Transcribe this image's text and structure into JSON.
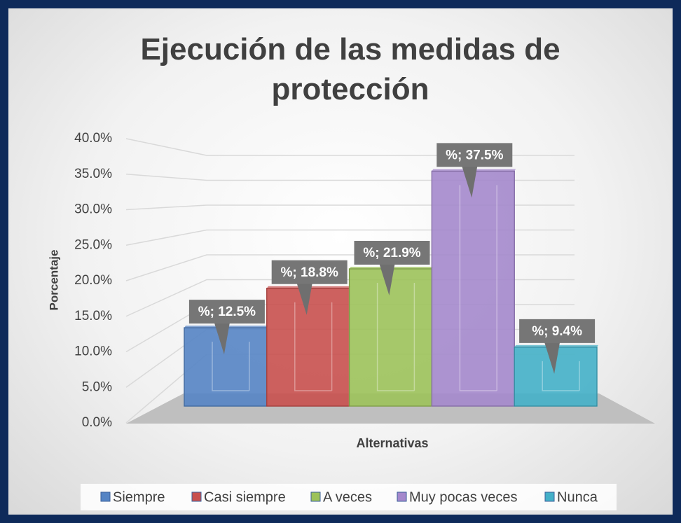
{
  "chart_data": {
    "type": "bar3d",
    "title": "Ejecución de las medidas de protección",
    "x_label": "Alternativas",
    "y_label": "Porcentaje",
    "ylim": [
      0,
      40
    ],
    "yticks": [
      {
        "value": 0,
        "label": "0.0%"
      },
      {
        "value": 5,
        "label": "5.0%"
      },
      {
        "value": 10,
        "label": "10.0%"
      },
      {
        "value": 15,
        "label": "15.0%"
      },
      {
        "value": 20,
        "label": "20.0%"
      },
      {
        "value": 25,
        "label": "25.0%"
      },
      {
        "value": 30,
        "label": "30.0%"
      },
      {
        "value": 35,
        "label": "35.0%"
      },
      {
        "value": 40,
        "label": "40.0%"
      }
    ],
    "grid": true,
    "legend": "bottom",
    "series": [
      {
        "name": "Siempre",
        "color": "#5584c4",
        "values": [
          12.5
        ],
        "value_labels": [
          "%; 12.5%"
        ]
      },
      {
        "name": "Casi siempre",
        "color": "#c8504e",
        "values": [
          18.8
        ],
        "value_labels": [
          "%; 18.8%"
        ]
      },
      {
        "name": "A veces",
        "color": "#9cc25a",
        "values": [
          21.9
        ],
        "value_labels": [
          "%; 21.9%"
        ]
      },
      {
        "name": "Muy pocas veces",
        "color": "#a488cc",
        "values": [
          37.5
        ],
        "value_labels": [
          "%; 37.5%"
        ]
      },
      {
        "name": "Nunca",
        "color": "#44b0c8",
        "values": [
          9.4
        ],
        "value_labels": [
          "%; 9.4%"
        ]
      }
    ]
  }
}
